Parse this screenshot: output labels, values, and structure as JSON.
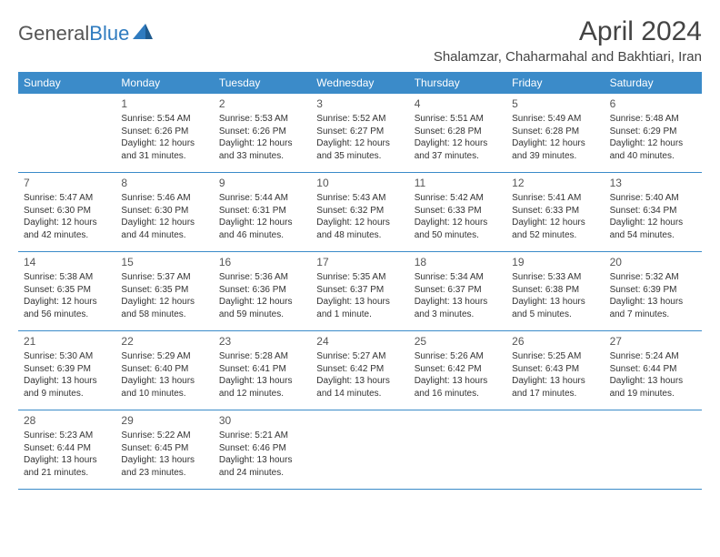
{
  "logo": {
    "text1": "General",
    "text2": "Blue"
  },
  "title": "April 2024",
  "location": "Shalamzar, Chaharmahal and Bakhtiari, Iran",
  "colors": {
    "header_bg": "#3b8bc9",
    "header_text": "#ffffff",
    "border": "#3b8bc9",
    "body_text": "#333333",
    "logo_gray": "#555555",
    "logo_blue": "#2f7bbf"
  },
  "day_names": [
    "Sunday",
    "Monday",
    "Tuesday",
    "Wednesday",
    "Thursday",
    "Friday",
    "Saturday"
  ],
  "start_offset": 1,
  "days": [
    {
      "n": 1,
      "sr": "5:54 AM",
      "ss": "6:26 PM",
      "dl": "12 hours and 31 minutes."
    },
    {
      "n": 2,
      "sr": "5:53 AM",
      "ss": "6:26 PM",
      "dl": "12 hours and 33 minutes."
    },
    {
      "n": 3,
      "sr": "5:52 AM",
      "ss": "6:27 PM",
      "dl": "12 hours and 35 minutes."
    },
    {
      "n": 4,
      "sr": "5:51 AM",
      "ss": "6:28 PM",
      "dl": "12 hours and 37 minutes."
    },
    {
      "n": 5,
      "sr": "5:49 AM",
      "ss": "6:28 PM",
      "dl": "12 hours and 39 minutes."
    },
    {
      "n": 6,
      "sr": "5:48 AM",
      "ss": "6:29 PM",
      "dl": "12 hours and 40 minutes."
    },
    {
      "n": 7,
      "sr": "5:47 AM",
      "ss": "6:30 PM",
      "dl": "12 hours and 42 minutes."
    },
    {
      "n": 8,
      "sr": "5:46 AM",
      "ss": "6:30 PM",
      "dl": "12 hours and 44 minutes."
    },
    {
      "n": 9,
      "sr": "5:44 AM",
      "ss": "6:31 PM",
      "dl": "12 hours and 46 minutes."
    },
    {
      "n": 10,
      "sr": "5:43 AM",
      "ss": "6:32 PM",
      "dl": "12 hours and 48 minutes."
    },
    {
      "n": 11,
      "sr": "5:42 AM",
      "ss": "6:33 PM",
      "dl": "12 hours and 50 minutes."
    },
    {
      "n": 12,
      "sr": "5:41 AM",
      "ss": "6:33 PM",
      "dl": "12 hours and 52 minutes."
    },
    {
      "n": 13,
      "sr": "5:40 AM",
      "ss": "6:34 PM",
      "dl": "12 hours and 54 minutes."
    },
    {
      "n": 14,
      "sr": "5:38 AM",
      "ss": "6:35 PM",
      "dl": "12 hours and 56 minutes."
    },
    {
      "n": 15,
      "sr": "5:37 AM",
      "ss": "6:35 PM",
      "dl": "12 hours and 58 minutes."
    },
    {
      "n": 16,
      "sr": "5:36 AM",
      "ss": "6:36 PM",
      "dl": "12 hours and 59 minutes."
    },
    {
      "n": 17,
      "sr": "5:35 AM",
      "ss": "6:37 PM",
      "dl": "13 hours and 1 minute."
    },
    {
      "n": 18,
      "sr": "5:34 AM",
      "ss": "6:37 PM",
      "dl": "13 hours and 3 minutes."
    },
    {
      "n": 19,
      "sr": "5:33 AM",
      "ss": "6:38 PM",
      "dl": "13 hours and 5 minutes."
    },
    {
      "n": 20,
      "sr": "5:32 AM",
      "ss": "6:39 PM",
      "dl": "13 hours and 7 minutes."
    },
    {
      "n": 21,
      "sr": "5:30 AM",
      "ss": "6:39 PM",
      "dl": "13 hours and 9 minutes."
    },
    {
      "n": 22,
      "sr": "5:29 AM",
      "ss": "6:40 PM",
      "dl": "13 hours and 10 minutes."
    },
    {
      "n": 23,
      "sr": "5:28 AM",
      "ss": "6:41 PM",
      "dl": "13 hours and 12 minutes."
    },
    {
      "n": 24,
      "sr": "5:27 AM",
      "ss": "6:42 PM",
      "dl": "13 hours and 14 minutes."
    },
    {
      "n": 25,
      "sr": "5:26 AM",
      "ss": "6:42 PM",
      "dl": "13 hours and 16 minutes."
    },
    {
      "n": 26,
      "sr": "5:25 AM",
      "ss": "6:43 PM",
      "dl": "13 hours and 17 minutes."
    },
    {
      "n": 27,
      "sr": "5:24 AM",
      "ss": "6:44 PM",
      "dl": "13 hours and 19 minutes."
    },
    {
      "n": 28,
      "sr": "5:23 AM",
      "ss": "6:44 PM",
      "dl": "13 hours and 21 minutes."
    },
    {
      "n": 29,
      "sr": "5:22 AM",
      "ss": "6:45 PM",
      "dl": "13 hours and 23 minutes."
    },
    {
      "n": 30,
      "sr": "5:21 AM",
      "ss": "6:46 PM",
      "dl": "13 hours and 24 minutes."
    }
  ],
  "labels": {
    "sunrise": "Sunrise:",
    "sunset": "Sunset:",
    "daylight": "Daylight:"
  }
}
